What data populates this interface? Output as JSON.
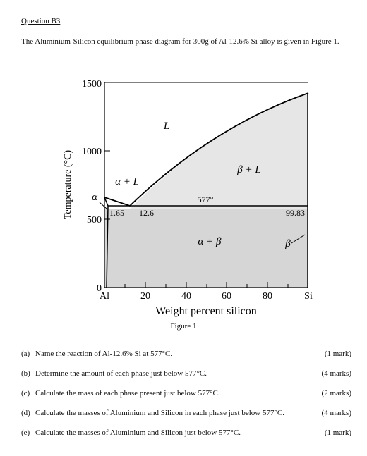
{
  "header": {
    "title": "Question B3",
    "intro": "The Aluminium-Silicon equilibrium phase diagram for 300g of Al-12.6% Si alloy is given in Figure 1."
  },
  "figure": {
    "y_axis_label": "Temperature (°C)",
    "y_ticks": [
      "1500",
      "1000",
      "500",
      "0"
    ],
    "x_ticks": [
      "Al",
      "20",
      "40",
      "60",
      "80",
      "Si"
    ],
    "x_axis_label": "Weight percent silicon",
    "caption": "Figure 1",
    "region_labels": {
      "liquid": "L",
      "beta_liquid": "β + L",
      "alpha_liquid": "α + L",
      "alpha": "α",
      "alpha_beta": "α + β",
      "beta": "β"
    },
    "annotations": {
      "eutectic_temp": "577°",
      "alpha_solubility": "1.65",
      "eutectic_comp": "12.6",
      "beta_solubility": "99.83"
    }
  },
  "questions": [
    {
      "label": "(a)",
      "text": "Name the reaction of Al-12.6% Si at 577°C.",
      "marks": "(1 mark)"
    },
    {
      "label": "(b)",
      "text": "Determine the amount of each phase just below 577°C.",
      "marks": "(4 marks)"
    },
    {
      "label": "(c)",
      "text": "Calculate the mass of each phase present just below 577°C.",
      "marks": "(2 marks)"
    },
    {
      "label": "(d)",
      "text": "Calculate the masses of Aluminium and Silicon in each phase just below 577°C.",
      "marks": "(4 marks)"
    },
    {
      "label": "(e)",
      "text": "Calculate the masses of Aluminium and Silicon just below 577°C.",
      "marks": "(1 mark)"
    }
  ]
}
